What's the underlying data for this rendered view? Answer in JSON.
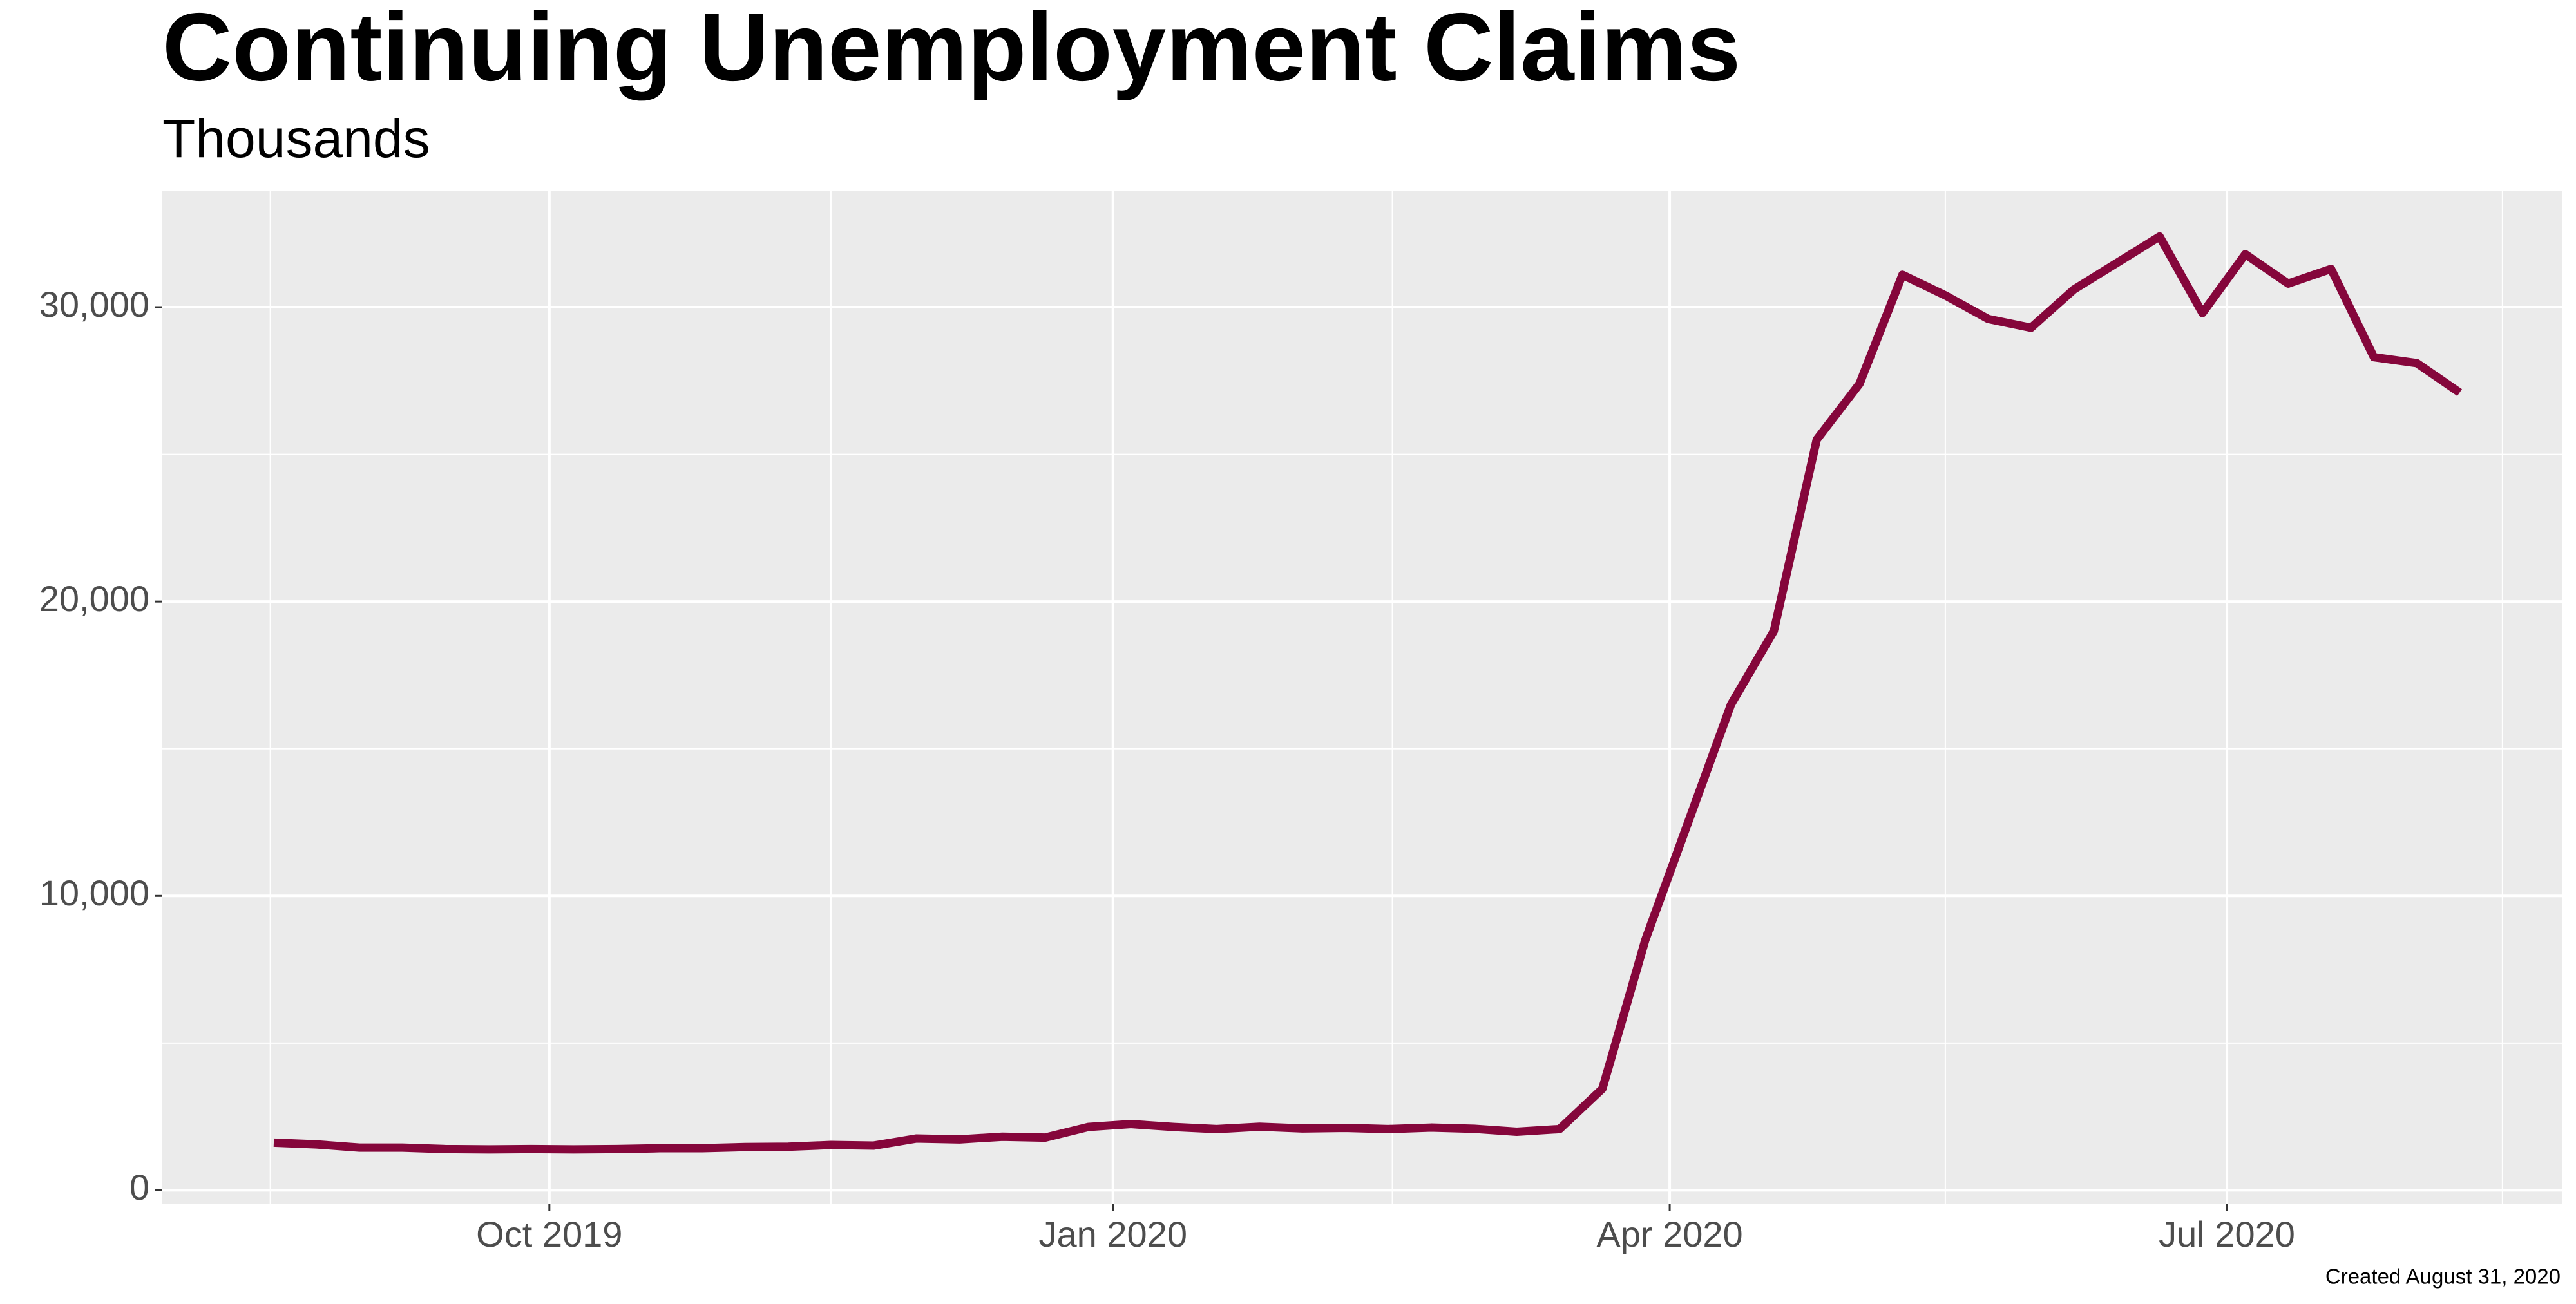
{
  "chart_data": {
    "type": "line",
    "title": "Continuing Unemployment Claims",
    "subtitle": "Thousands",
    "caption": "Created August 31, 2020",
    "categories": [
      null,
      null,
      null,
      null,
      null,
      null,
      null,
      null,
      null,
      null,
      null,
      null,
      null,
      null,
      null,
      null,
      null,
      null,
      null,
      null,
      null,
      null,
      null,
      null,
      null,
      null,
      null,
      null,
      null,
      null,
      null,
      null,
      null,
      null,
      null,
      null,
      null,
      null,
      null,
      null,
      null,
      null,
      null,
      null,
      null,
      null,
      null,
      null,
      null,
      null,
      null,
      null
    ],
    "series": [
      {
        "color": "#85063b",
        "values": [
          1620,
          1560,
          1450,
          1450,
          1400,
          1390,
          1400,
          1390,
          1400,
          1430,
          1430,
          1470,
          1480,
          1540,
          1520,
          1760,
          1730,
          1820,
          1790,
          2150,
          2250,
          2150,
          2080,
          2160,
          2100,
          2120,
          2080,
          2130,
          2090,
          1990,
          2080,
          3450,
          8500,
          12500,
          16500,
          19000,
          25500,
          27400,
          31100,
          30400,
          29600,
          29300,
          30600,
          31500,
          32400,
          29800,
          31800,
          30800,
          31300,
          28300,
          28100,
          27100
        ]
      }
    ],
    "xlim": [
      -2.6,
      53.4
    ],
    "xticks": [
      {
        "value": 6.43,
        "label": "Oct 2019"
      },
      {
        "value": 19.58,
        "label": "Jan 2020"
      },
      {
        "value": 32.57,
        "label": "Apr 2020"
      },
      {
        "value": 45.57,
        "label": "Jul 2020"
      }
    ],
    "minor_xticks": [
      -0.08,
      13.0,
      26.1,
      39.0,
      52.0
    ],
    "ylim": [
      -450,
      33960
    ],
    "yticks": [
      0,
      {
        "value": 10000,
        "label": "10,000"
      },
      {
        "value": 20000,
        "label": "20,000"
      },
      {
        "value": 30000,
        "label": "30,000"
      }
    ],
    "minor_yticks": [
      5000,
      15000,
      25000
    ],
    "grid": true
  }
}
